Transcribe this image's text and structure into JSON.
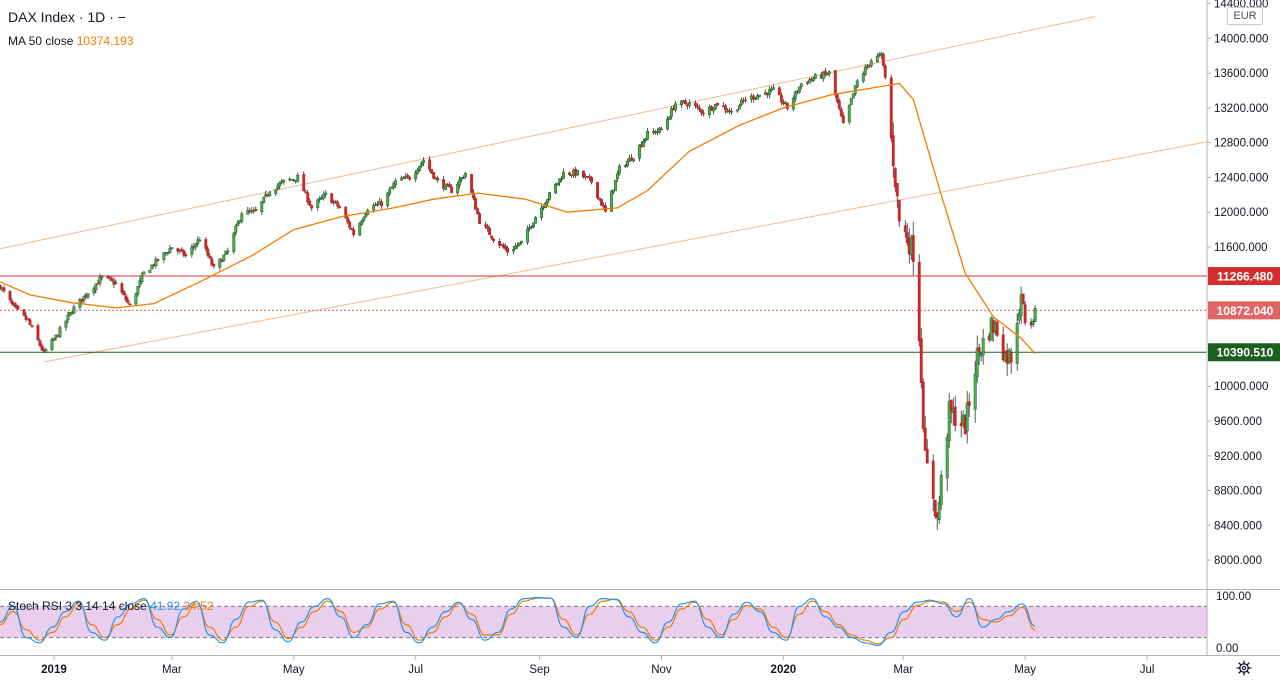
{
  "header": {
    "symbol": "DAX Index",
    "interval": "1D",
    "separator": "·",
    "dash": "−",
    "currency": "EUR"
  },
  "indicators": {
    "ma": {
      "label": "MA 50 close",
      "value": "10374.193"
    },
    "stoch_rsi": {
      "label": "Stoch RSI 3 3 14 14 close",
      "k": "41.92",
      "d": "34.52"
    }
  },
  "colors": {
    "bull": "#26a69a",
    "bullCandle": "#1b5e20",
    "bear": "#c62828",
    "ma": "#f57c00",
    "channel": "#f5b98a",
    "resistance": "#d32f2f",
    "support": "#1b5e20",
    "last": "#e06666",
    "rsiBand": "#e1bee7",
    "k": "#2196f3",
    "d": "#f57c00"
  },
  "chart_data": {
    "type": "candlestick",
    "y_axis": {
      "ticks": [
        "14400.000",
        "14000.000",
        "13600.000",
        "13200.000",
        "12800.000",
        "12400.000",
        "12000.000",
        "11600.000",
        "10000.000",
        "9600.000",
        "9200.000",
        "8800.000",
        "8400.000",
        "8000.000"
      ],
      "range": [
        7680,
        14440
      ]
    },
    "x_axis": {
      "ticks": [
        {
          "label": "2019",
          "date": "2019-01-01"
        },
        {
          "label": "Mar",
          "date": "2019-03-01"
        },
        {
          "label": "May",
          "date": "2019-05-01"
        },
        {
          "label": "Jul",
          "date": "2019-07-01"
        },
        {
          "label": "Sep",
          "date": "2019-09-01"
        },
        {
          "label": "Nov",
          "date": "2019-11-01"
        },
        {
          "label": "2020",
          "date": "2020-01-01"
        },
        {
          "label": "Mar",
          "date": "2020-03-01"
        },
        {
          "label": "May",
          "date": "2020-05-01"
        },
        {
          "label": "Jul",
          "date": "2020-07-01"
        }
      ],
      "range": [
        "2018-12-05",
        "2020-07-31"
      ]
    },
    "price_path": [
      [
        "2018-12-05",
        11150
      ],
      [
        "2018-12-12",
        10900
      ],
      [
        "2018-12-19",
        10750
      ],
      [
        "2018-12-27",
        10380
      ],
      [
        "2019-01-03",
        10600
      ],
      [
        "2019-01-10",
        10870
      ],
      [
        "2019-01-18",
        11080
      ],
      [
        "2019-01-25",
        11250
      ],
      [
        "2019-02-01",
        11180
      ],
      [
        "2019-02-08",
        10920
      ],
      [
        "2019-02-15",
        11300
      ],
      [
        "2019-02-22",
        11450
      ],
      [
        "2019-03-01",
        11600
      ],
      [
        "2019-03-08",
        11500
      ],
      [
        "2019-03-15",
        11700
      ],
      [
        "2019-03-22",
        11350
      ],
      [
        "2019-03-29",
        11550
      ],
      [
        "2019-04-05",
        12000
      ],
      [
        "2019-04-12",
        12000
      ],
      [
        "2019-04-19",
        12250
      ],
      [
        "2019-04-26",
        12350
      ],
      [
        "2019-05-03",
        12400
      ],
      [
        "2019-05-10",
        12050
      ],
      [
        "2019-05-17",
        12200
      ],
      [
        "2019-05-24",
        12050
      ],
      [
        "2019-05-31",
        11750
      ],
      [
        "2019-06-07",
        12050
      ],
      [
        "2019-06-14",
        12100
      ],
      [
        "2019-06-21",
        12350
      ],
      [
        "2019-06-28",
        12400
      ],
      [
        "2019-07-05",
        12600
      ],
      [
        "2019-07-12",
        12350
      ],
      [
        "2019-07-19",
        12250
      ],
      [
        "2019-07-26",
        12450
      ],
      [
        "2019-08-02",
        11900
      ],
      [
        "2019-08-09",
        11700
      ],
      [
        "2019-08-16",
        11550
      ],
      [
        "2019-08-23",
        11650
      ],
      [
        "2019-08-30",
        11950
      ],
      [
        "2019-09-06",
        12200
      ],
      [
        "2019-09-13",
        12450
      ],
      [
        "2019-09-20",
        12450
      ],
      [
        "2019-09-27",
        12350
      ],
      [
        "2019-10-04",
        12000
      ],
      [
        "2019-10-11",
        12500
      ],
      [
        "2019-10-18",
        12650
      ],
      [
        "2019-10-25",
        12900
      ],
      [
        "2019-11-01",
        12950
      ],
      [
        "2019-11-08",
        13250
      ],
      [
        "2019-11-15",
        13250
      ],
      [
        "2019-11-22",
        13150
      ],
      [
        "2019-11-29",
        13250
      ],
      [
        "2019-12-06",
        13150
      ],
      [
        "2019-12-13",
        13300
      ],
      [
        "2019-12-20",
        13350
      ],
      [
        "2019-12-27",
        13400
      ],
      [
        "2020-01-03",
        13200
      ],
      [
        "2020-01-10",
        13480
      ],
      [
        "2020-01-17",
        13550
      ],
      [
        "2020-01-24",
        13600
      ],
      [
        "2020-01-31",
        13000
      ],
      [
        "2020-02-07",
        13500
      ],
      [
        "2020-02-14",
        13750
      ],
      [
        "2020-02-19",
        13800
      ],
      [
        "2020-02-21",
        13550
      ],
      [
        "2020-02-28",
        11900
      ],
      [
        "2020-03-06",
        11550
      ],
      [
        "2020-03-09",
        10600
      ],
      [
        "2020-03-12",
        9150
      ],
      [
        "2020-03-16",
        8750
      ],
      [
        "2020-03-18",
        8450
      ],
      [
        "2020-03-20",
        8900
      ],
      [
        "2020-03-24",
        9700
      ],
      [
        "2020-03-27",
        9650
      ],
      [
        "2020-04-01",
        9550
      ],
      [
        "2020-04-07",
        10350
      ],
      [
        "2020-04-14",
        10700
      ],
      [
        "2020-04-17",
        10650
      ],
      [
        "2020-04-21",
        10350
      ],
      [
        "2020-04-24",
        10350
      ],
      [
        "2020-04-29",
        11100
      ],
      [
        "2020-05-01",
        10750
      ],
      [
        "2020-05-05",
        10720
      ],
      [
        "2020-05-06",
        10872
      ]
    ],
    "ma50_path": [
      [
        "2018-12-05",
        11200
      ],
      [
        "2018-12-20",
        11050
      ],
      [
        "2019-01-10",
        10960
      ],
      [
        "2019-02-01",
        10900
      ],
      [
        "2019-02-20",
        10950
      ],
      [
        "2019-03-15",
        11200
      ],
      [
        "2019-04-10",
        11500
      ],
      [
        "2019-05-01",
        11800
      ],
      [
        "2019-05-25",
        11950
      ],
      [
        "2019-06-20",
        12050
      ],
      [
        "2019-07-10",
        12150
      ],
      [
        "2019-08-01",
        12220
      ],
      [
        "2019-08-25",
        12150
      ],
      [
        "2019-09-15",
        12000
      ],
      [
        "2019-10-10",
        12050
      ],
      [
        "2019-10-25",
        12250
      ],
      [
        "2019-11-15",
        12700
      ],
      [
        "2019-12-10",
        13000
      ],
      [
        "2020-01-01",
        13200
      ],
      [
        "2020-01-25",
        13350
      ],
      [
        "2020-02-20",
        13450
      ],
      [
        "2020-02-28",
        13480
      ],
      [
        "2020-03-06",
        13300
      ],
      [
        "2020-03-20",
        12200
      ],
      [
        "2020-04-01",
        11300
      ],
      [
        "2020-04-15",
        10800
      ],
      [
        "2020-04-29",
        10550
      ],
      [
        "2020-05-06",
        10374
      ]
    ],
    "channel": [
      {
        "from": [
          "2018-12-05",
          11580
        ],
        "to": [
          "2020-06-05",
          14250
        ]
      },
      {
        "from": [
          "2018-12-27",
          10280
        ],
        "to": [
          "2020-07-31",
          12810
        ]
      }
    ],
    "levels": [
      {
        "value": "11266.480",
        "color": "#d32f2f",
        "style": "solid"
      },
      {
        "value": "10872.040",
        "color": "#e06666",
        "style": "dotted"
      },
      {
        "value": "10390.510",
        "color": "#1b5e20",
        "style": "solid"
      }
    ],
    "stoch_rsi": {
      "axis_ticks": [
        "100.00",
        "0.00"
      ],
      "band": [
        20,
        80
      ],
      "k": [
        50,
        80,
        20,
        10,
        40,
        70,
        90,
        30,
        15,
        60,
        85,
        95,
        40,
        20,
        75,
        90,
        25,
        10,
        55,
        88,
        92,
        35,
        12,
        50,
        80,
        95,
        60,
        20,
        45,
        85,
        90,
        30,
        10,
        40,
        70,
        88,
        55,
        15,
        30,
        75,
        95,
        97,
        96,
        40,
        20,
        80,
        95,
        93,
        60,
        30,
        10,
        50,
        85,
        90,
        40,
        20,
        65,
        88,
        70,
        30,
        15,
        80,
        95,
        60,
        40,
        20,
        10,
        5,
        30,
        70,
        88,
        92,
        85,
        60,
        95,
        40,
        55,
        70,
        85,
        41.92
      ],
      "d": [
        45,
        70,
        35,
        15,
        30,
        60,
        85,
        45,
        20,
        45,
        75,
        92,
        55,
        25,
        60,
        85,
        40,
        15,
        40,
        80,
        90,
        50,
        18,
        40,
        70,
        90,
        70,
        30,
        40,
        75,
        88,
        45,
        15,
        30,
        60,
        85,
        65,
        25,
        25,
        65,
        90,
        96,
        96,
        55,
        25,
        65,
        90,
        94,
        70,
        40,
        15,
        40,
        75,
        88,
        55,
        25,
        55,
        82,
        75,
        40,
        20,
        65,
        90,
        70,
        45,
        25,
        15,
        8,
        20,
        55,
        82,
        90,
        88,
        70,
        88,
        55,
        50,
        62,
        78,
        34.52
      ]
    }
  }
}
